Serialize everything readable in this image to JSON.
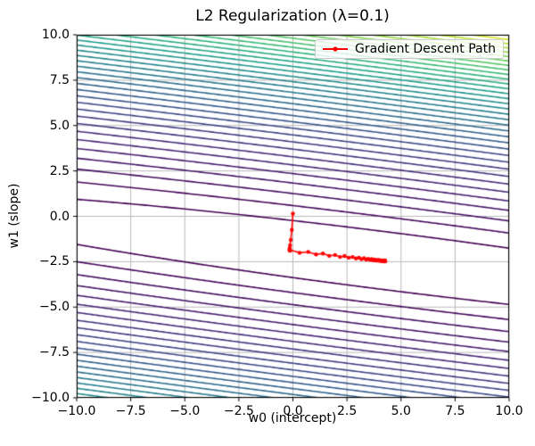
{
  "title": "L2 Regularization (λ=0.1)",
  "axes": {
    "xlabel": "w0 (intercept)",
    "ylabel": "w1 (slope)",
    "xtick_labels": [
      "−10.0",
      "−7.5",
      "−5.0",
      "−2.5",
      "0.0",
      "2.5",
      "5.0",
      "7.5",
      "10.0"
    ],
    "xtick_values": [
      -10,
      -7.5,
      -5,
      -2.5,
      0,
      2.5,
      5,
      7.5,
      10
    ],
    "ytick_labels": [
      "10.0",
      "7.5",
      "5.0",
      "2.5",
      "0.0",
      "−2.5",
      "−5.0",
      "−7.5",
      "−10.0"
    ],
    "ytick_values": [
      10,
      7.5,
      5,
      2.5,
      0,
      -2.5,
      -5,
      -7.5,
      -10
    ]
  },
  "legend": {
    "label": "Gradient Descent Path",
    "line_color": "#ff0000"
  },
  "colors": {
    "grid": "#b8b8b8",
    "spine": "#000000",
    "path": "#ff0000",
    "viridis_stops": [
      "#440154",
      "#482878",
      "#3e4989",
      "#31688e",
      "#26828e",
      "#1f9e89",
      "#35b779",
      "#6dcd59",
      "#b4de2c",
      "#fde725"
    ]
  },
  "chart_data": {
    "type": "contour+line",
    "title": "L2 Regularization (λ=0.1)",
    "xlabel": "w0 (intercept)",
    "ylabel": "w1 (slope)",
    "xlim": [
      -10,
      10
    ],
    "ylim": [
      -10,
      10
    ],
    "grid": true,
    "legend_position": "upper right",
    "contour": {
      "colormap": "viridis",
      "levels_count": 36,
      "level_base": 2.56,
      "level_exponent": 1.19,
      "surface": {
        "description": "ridge-regression loss valley, nearly flat along w0",
        "minimum_w0": 4.3,
        "minimum_w1": -2.45,
        "valley_slope": -0.15,
        "w0_curvature": 0.005,
        "w1_curvature": 1.0
      }
    },
    "path": {
      "name": "Gradient Descent Path",
      "color": "#ff0000",
      "start": [
        0.0,
        0.15
      ],
      "end": [
        4.27,
        -2.47
      ],
      "points": [
        [
          0.0,
          0.15
        ],
        [
          -0.05,
          -0.75
        ],
        [
          -0.1,
          -1.3
        ],
        [
          -0.13,
          -1.6
        ],
        [
          -0.15,
          -1.76
        ],
        [
          -0.16,
          -1.84
        ],
        [
          -0.15,
          -1.88
        ],
        [
          -0.13,
          -1.9
        ],
        [
          -0.13,
          -1.85
        ],
        [
          0.31,
          -2.01
        ],
        [
          0.71,
          -1.96
        ],
        [
          1.07,
          -2.1
        ],
        [
          1.39,
          -2.05
        ],
        [
          1.68,
          -2.18
        ],
        [
          1.95,
          -2.13
        ],
        [
          2.18,
          -2.24
        ],
        [
          2.39,
          -2.19
        ],
        [
          2.58,
          -2.28
        ],
        [
          2.76,
          -2.24
        ],
        [
          2.91,
          -2.32
        ],
        [
          3.05,
          -2.28
        ],
        [
          3.17,
          -2.36
        ],
        [
          3.29,
          -2.31
        ],
        [
          3.39,
          -2.38
        ],
        [
          3.48,
          -2.34
        ],
        [
          3.56,
          -2.4
        ],
        [
          3.64,
          -2.36
        ],
        [
          3.7,
          -2.42
        ],
        [
          3.76,
          -2.38
        ],
        [
          3.82,
          -2.43
        ],
        [
          3.86,
          -2.4
        ],
        [
          3.91,
          -2.44
        ],
        [
          3.95,
          -2.41
        ],
        [
          3.98,
          -2.45
        ],
        [
          4.01,
          -2.42
        ],
        [
          4.04,
          -2.45
        ],
        [
          4.07,
          -2.43
        ],
        [
          4.09,
          -2.46
        ],
        [
          4.11,
          -2.43
        ],
        [
          4.13,
          -2.46
        ],
        [
          4.15,
          -2.44
        ],
        [
          4.16,
          -2.46
        ],
        [
          4.18,
          -2.44
        ],
        [
          4.19,
          -2.46
        ],
        [
          4.2,
          -2.45
        ],
        [
          4.21,
          -2.46
        ],
        [
          4.22,
          -2.45
        ],
        [
          4.23,
          -2.47
        ],
        [
          4.23,
          -2.45
        ],
        [
          4.24,
          -2.47
        ],
        [
          4.25,
          -2.45
        ],
        [
          4.25,
          -2.47
        ],
        [
          4.26,
          -2.46
        ],
        [
          4.26,
          -2.47
        ],
        [
          4.27,
          -2.46
        ],
        [
          4.27,
          -2.47
        ]
      ]
    }
  }
}
